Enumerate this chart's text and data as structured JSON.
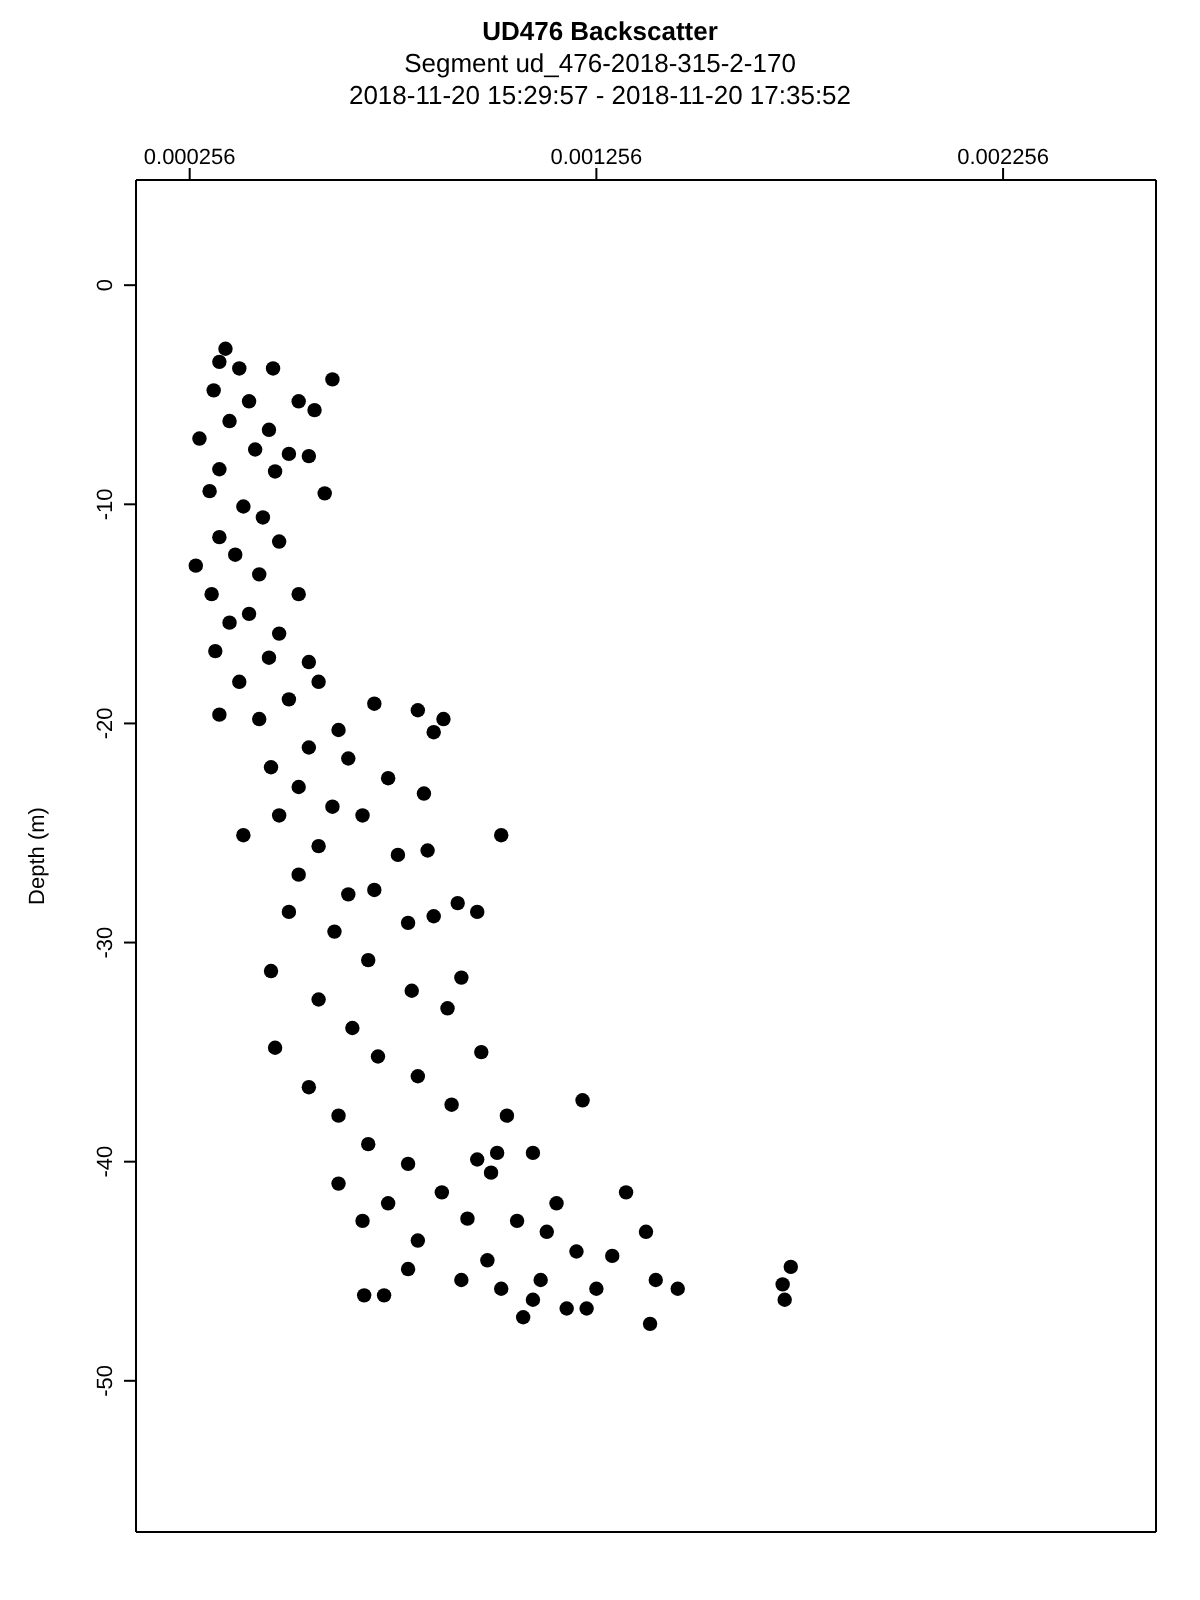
{
  "chart_data": {
    "type": "scatter",
    "title": "UD476 Backscatter",
    "subtitle": "Segment ud_476-2018-315-2-170",
    "annotations": [
      "2018-11-20 15:29:57 - 2018-11-20 17:35:52"
    ],
    "ylabel": "Depth (m)",
    "xlim": [
      0.000124,
      0.002632
    ],
    "xticks": [
      0.000256,
      0.001256,
      0.002256
    ],
    "ylim": [
      -56.9,
      4.8
    ],
    "yticks": [
      -50,
      -40,
      -30,
      -20,
      -10,
      0
    ],
    "marker": "circle",
    "series": [
      {
        "color": "#000000",
        "x": [
          0.000344,
          0.000329,
          0.000378,
          0.000461,
          0.000607,
          0.000315,
          0.000402,
          0.000524,
          0.000563,
          0.000354,
          0.000451,
          0.00028,
          0.000417,
          0.0005,
          0.000549,
          0.000329,
          0.000466,
          0.000305,
          0.000588,
          0.000388,
          0.000436,
          0.000329,
          0.000476,
          0.000368,
          0.000271,
          0.000427,
          0.000524,
          0.00031,
          0.000402,
          0.000354,
          0.000476,
          0.000319,
          0.000451,
          0.000549,
          0.000378,
          0.000573,
          0.0005,
          0.000427,
          0.000329,
          0.00071,
          0.000817,
          0.00088,
          0.000856,
          0.000622,
          0.000549,
          0.000456,
          0.000646,
          0.000744,
          0.000524,
          0.000607,
          0.000832,
          0.000476,
          0.000681,
          0.000388,
          0.001022,
          0.000573,
          0.000768,
          0.000841,
          0.000524,
          0.00071,
          0.000646,
          0.000915,
          0.0005,
          0.000612,
          0.000793,
          0.000856,
          0.000924,
          0.000963,
          0.000456,
          0.000695,
          0.000573,
          0.000802,
          0.00089,
          0.000656,
          0.000466,
          0.000973,
          0.000719,
          0.000549,
          0.000817,
          0.000622,
          0.0009,
          0.001222,
          0.000695,
          0.001036,
          0.001012,
          0.0011,
          0.000793,
          0.000963,
          0.000622,
          0.000876,
          0.000997,
          0.000744,
          0.001158,
          0.001329,
          0.000939,
          0.000681,
          0.001061,
          0.000817,
          0.001134,
          0.000793,
          0.000988,
          0.001207,
          0.001378,
          0.001295,
          0.001022,
          0.001119,
          0.001256,
          0.001402,
          0.001456,
          0.000685,
          0.000734,
          0.000924,
          0.0011,
          0.001183,
          0.001232,
          0.001076,
          0.001388,
          0.001734,
          0.001714,
          0.001719
        ],
        "values": [
          -2.9,
          -3.5,
          -3.8,
          -3.8,
          -4.3,
          -4.8,
          -5.3,
          -5.3,
          -5.7,
          -6.2,
          -6.6,
          -7.0,
          -7.5,
          -7.7,
          -7.8,
          -8.4,
          -8.5,
          -9.4,
          -9.5,
          -10.1,
          -10.6,
          -11.5,
          -11.7,
          -12.3,
          -12.8,
          -13.2,
          -14.1,
          -14.1,
          -15.0,
          -15.4,
          -15.9,
          -16.7,
          -17.0,
          -17.2,
          -18.1,
          -18.1,
          -18.9,
          -19.8,
          -19.6,
          -19.1,
          -19.4,
          -19.8,
          -20.4,
          -20.3,
          -21.1,
          -22.0,
          -21.6,
          -22.5,
          -22.9,
          -23.8,
          -23.2,
          -24.2,
          -24.2,
          -25.1,
          -25.1,
          -25.6,
          -26.0,
          -25.8,
          -26.9,
          -27.6,
          -27.8,
          -28.2,
          -28.6,
          -29.5,
          -29.1,
          -28.8,
          -31.6,
          -28.6,
          -31.3,
          -30.8,
          -32.6,
          -32.2,
          -33.0,
          -33.9,
          -34.8,
          -35.0,
          -35.2,
          -36.6,
          -36.1,
          -37.9,
          -37.4,
          -37.2,
          -39.2,
          -37.9,
          -39.6,
          -39.6,
          -40.1,
          -39.9,
          -41.0,
          -41.4,
          -40.5,
          -41.9,
          -41.9,
          -41.4,
          -42.6,
          -42.7,
          -42.7,
          -43.6,
          -43.2,
          -44.9,
          -44.5,
          -44.1,
          -43.2,
          -44.3,
          -45.8,
          -45.4,
          -45.8,
          -45.4,
          -45.8,
          -46.1,
          -46.1,
          -45.4,
          -46.3,
          -46.7,
          -46.7,
          -47.1,
          -47.4,
          -44.8,
          -45.6,
          -46.3
        ]
      }
    ]
  }
}
